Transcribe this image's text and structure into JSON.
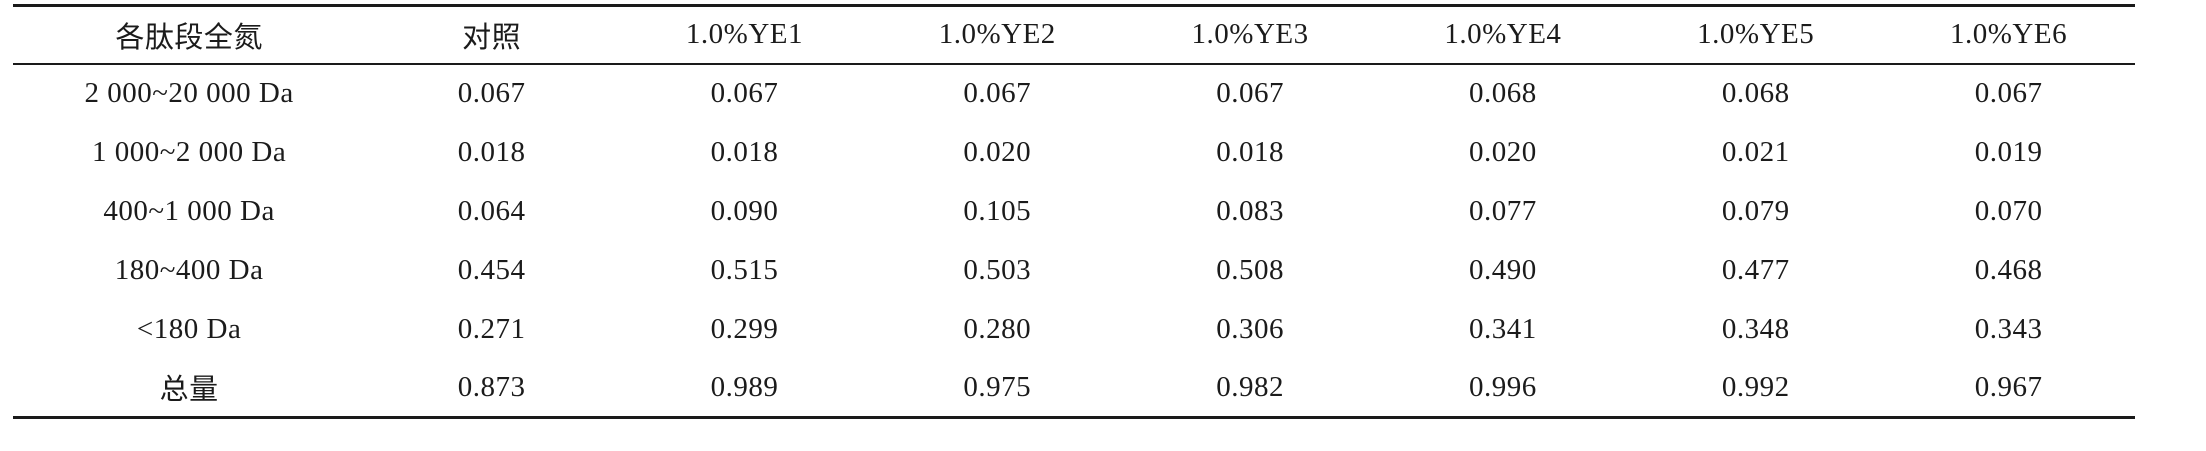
{
  "table": {
    "columns": [
      "各肽段全氮",
      "对照",
      "1.0%YE1",
      "1.0%YE2",
      "1.0%YE3",
      "1.0%YE4",
      "1.0%YE5",
      "1.0%YE6"
    ],
    "rows": [
      {
        "label": "2 000~20 000 Da",
        "values": [
          "0.067",
          "0.067",
          "0.067",
          "0.067",
          "0.068",
          "0.068",
          "0.067"
        ]
      },
      {
        "label": "1 000~2 000 Da",
        "values": [
          "0.018",
          "0.018",
          "0.020",
          "0.018",
          "0.020",
          "0.021",
          "0.019"
        ]
      },
      {
        "label": "400~1 000 Da",
        "values": [
          "0.064",
          "0.090",
          "0.105",
          "0.083",
          "0.077",
          "0.079",
          "0.070"
        ]
      },
      {
        "label": "180~400 Da",
        "values": [
          "0.454",
          "0.515",
          "0.503",
          "0.508",
          "0.490",
          "0.477",
          "0.468"
        ]
      },
      {
        "label": "<180 Da",
        "values": [
          "0.271",
          "0.299",
          "0.280",
          "0.306",
          "0.341",
          "0.348",
          "0.343"
        ]
      },
      {
        "label": "总量",
        "values": [
          "0.873",
          "0.989",
          "0.975",
          "0.982",
          "0.996",
          "0.992",
          "0.967"
        ]
      }
    ],
    "style": {
      "text_color": "#1b1b1b",
      "rule_color": "#1a1a1a",
      "background": "#ffffff"
    }
  },
  "chart_data": {
    "type": "table",
    "title": "",
    "categories": [
      "2 000~20 000 Da",
      "1 000~2 000 Da",
      "400~1 000 Da",
      "180~400 Da",
      "<180 Da",
      "总量"
    ],
    "series": [
      {
        "name": "对照",
        "values": [
          0.067,
          0.018,
          0.064,
          0.454,
          0.271,
          0.873
        ]
      },
      {
        "name": "1.0%YE1",
        "values": [
          0.067,
          0.018,
          0.09,
          0.515,
          0.299,
          0.989
        ]
      },
      {
        "name": "1.0%YE2",
        "values": [
          0.067,
          0.02,
          0.105,
          0.503,
          0.28,
          0.975
        ]
      },
      {
        "name": "1.0%YE3",
        "values": [
          0.067,
          0.018,
          0.083,
          0.508,
          0.306,
          0.982
        ]
      },
      {
        "name": "1.0%YE4",
        "values": [
          0.068,
          0.02,
          0.077,
          0.49,
          0.341,
          0.996
        ]
      },
      {
        "name": "1.0%YE5",
        "values": [
          0.068,
          0.021,
          0.079,
          0.477,
          0.348,
          0.992
        ]
      },
      {
        "name": "1.0%YE6",
        "values": [
          0.067,
          0.019,
          0.07,
          0.468,
          0.343,
          0.967
        ]
      }
    ]
  }
}
